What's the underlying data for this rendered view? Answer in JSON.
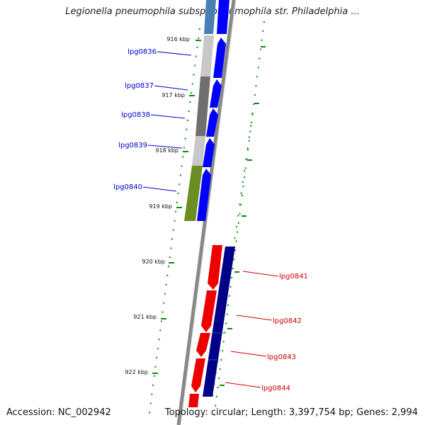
{
  "title": "Legionella pneumophila subsp. pneumophila str. Philadelphia ...",
  "accession_text": "Accession: NC_002942",
  "topology_text": "Topology: circular; Length: 3,397,754 bp; Genes: 2,994",
  "ticks": [
    {
      "label": "916 kbp"
    },
    {
      "label": "917 kbp"
    },
    {
      "label": "918 kbp"
    },
    {
      "label": "919 kbp"
    },
    {
      "label": "920 kbp"
    },
    {
      "label": "921 kbp"
    },
    {
      "label": "922 kbp"
    }
  ],
  "genes_left": [
    {
      "label": "lpg0836",
      "color": "#0000cc"
    },
    {
      "label": "lpg0837",
      "color": "#0000cc"
    },
    {
      "label": "lpg0838",
      "color": "#0000cc"
    },
    {
      "label": "lpg0839",
      "color": "#0000cc"
    },
    {
      "label": "lpg0840",
      "color": "#0000cc"
    }
  ],
  "genes_right": [
    {
      "label": "lpg0841",
      "color": "#cc0000"
    },
    {
      "label": "lpg0842",
      "color": "#cc0000"
    },
    {
      "label": "lpg0843",
      "color": "#cc0000"
    },
    {
      "label": "lpg0844",
      "color": "#cc0000"
    }
  ],
  "colors": {
    "forward_strand": "#0000ff",
    "reverse_strand": "#ee0000",
    "reverse_strand_dark": "#000088",
    "backbone": "#888888",
    "dotted_guides": "#118811",
    "tick_mark": "#118811"
  }
}
